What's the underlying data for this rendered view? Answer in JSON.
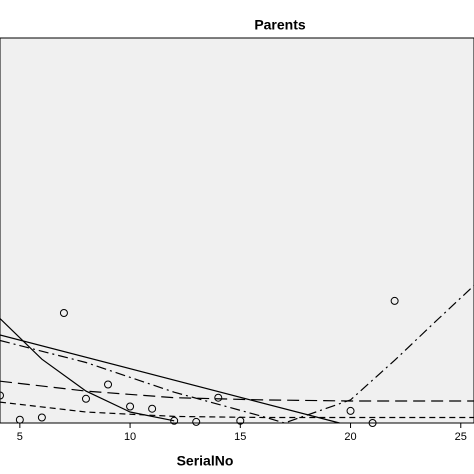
{
  "chart_data": {
    "type": "scatter",
    "title": "Parents",
    "x_label": "SerialNo",
    "xlim": [
      4.1,
      25.6
    ],
    "ylim": [
      0,
      35
    ],
    "xticks": [
      5,
      10,
      15,
      20,
      25
    ],
    "plot_background": "#f0f0f0",
    "color": "#000000",
    "points": {
      "x": [
        4.1,
        5,
        6,
        7,
        8,
        9,
        10,
        11,
        12,
        13,
        14,
        15,
        20,
        21,
        22
      ],
      "y": [
        2.5,
        0.3,
        0.5,
        10.0,
        2.2,
        3.5,
        1.5,
        1.3,
        0.2,
        0.1,
        2.3,
        0.2,
        1.1,
        0,
        11.1
      ]
    },
    "curves": [
      {
        "dash": "none",
        "x": [
          4.1,
          19.5
        ],
        "y": [
          8.0,
          0
        ]
      },
      {
        "dash": "none",
        "x": [
          4.1,
          6,
          8,
          10,
          12
        ],
        "y": [
          9.5,
          5.8,
          2.9,
          1.0,
          0.2
        ]
      },
      {
        "dash": "10 4 2 4",
        "x": [
          4.1,
          8,
          12,
          16,
          17,
          20,
          22,
          24,
          25.6
        ],
        "y": [
          7.5,
          5.5,
          2.8,
          0.6,
          0,
          2.1,
          5.7,
          9.5,
          12.5
        ]
      },
      {
        "dash": "12 6",
        "x": [
          4.1,
          8,
          12,
          16,
          20,
          25.6
        ],
        "y": [
          3.8,
          2.9,
          2.3,
          2.1,
          2.0,
          2.0
        ]
      },
      {
        "dash": "6 4",
        "x": [
          4.1,
          8,
          12,
          16,
          20,
          25.6
        ],
        "y": [
          1.9,
          1.0,
          0.6,
          0.5,
          0.5,
          0.5
        ]
      }
    ]
  }
}
